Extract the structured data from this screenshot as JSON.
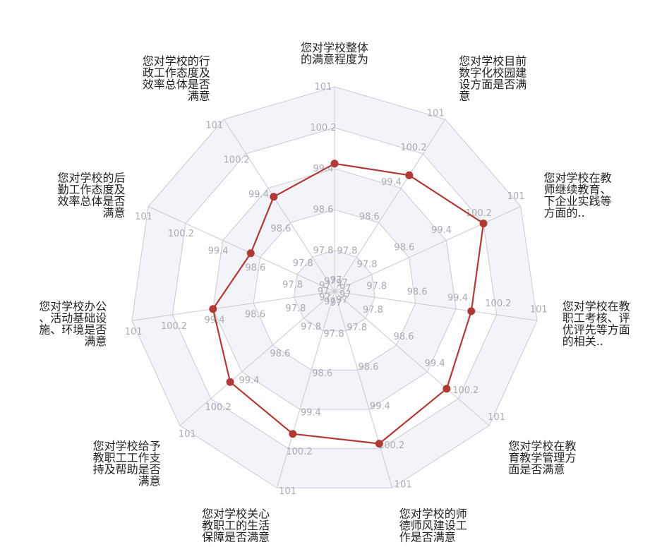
{
  "chart_data": {
    "type": "radar",
    "categories": [
      [
        "您对学校整体",
        "的满意程度为"
      ],
      [
        "您对学校目前",
        "数字化校园建",
        "设方面是否满",
        "意"
      ],
      [
        "您对学校在教",
        "师继续教育、",
        "下企业实践等",
        "方面的.."
      ],
      [
        "您对学校在教",
        "职工考核、评",
        "优评先等方面",
        "的相关.."
      ],
      [
        "您对学校在教",
        "育教学管理方",
        "面是否满意"
      ],
      [
        "您对学校的师",
        "德师风建设工",
        "作是否满意"
      ],
      [
        "您对学校关心",
        "教职工的生活",
        "保障是否满意"
      ],
      [
        "您对学校给予",
        "教职工工作支",
        "持及帮助是否",
        "满意"
      ],
      [
        "您对学校办公",
        "、活动基础设",
        "施、环境是否",
        "满意"
      ],
      [
        "您对学校的后",
        "勤工作态度及",
        "效率总体是否",
        "满意"
      ],
      [
        "您对学校的行",
        "政工作态度及",
        "效率总体是否",
        "满意"
      ]
    ],
    "ticks": [
      "97",
      "97.8",
      "98.6",
      "99.4",
      "100.2",
      "101"
    ],
    "rmin": 97,
    "rmax": 101,
    "series": [
      {
        "values": [
          99.5,
          99.7,
          100.2,
          99.7,
          99.9,
          100.1,
          99.9,
          99.7,
          99.4,
          98.8,
          99.2
        ]
      }
    ],
    "colors": {
      "series": "#b03a36",
      "band": "#f3f4fa",
      "grid": "#c9cbd2"
    }
  }
}
